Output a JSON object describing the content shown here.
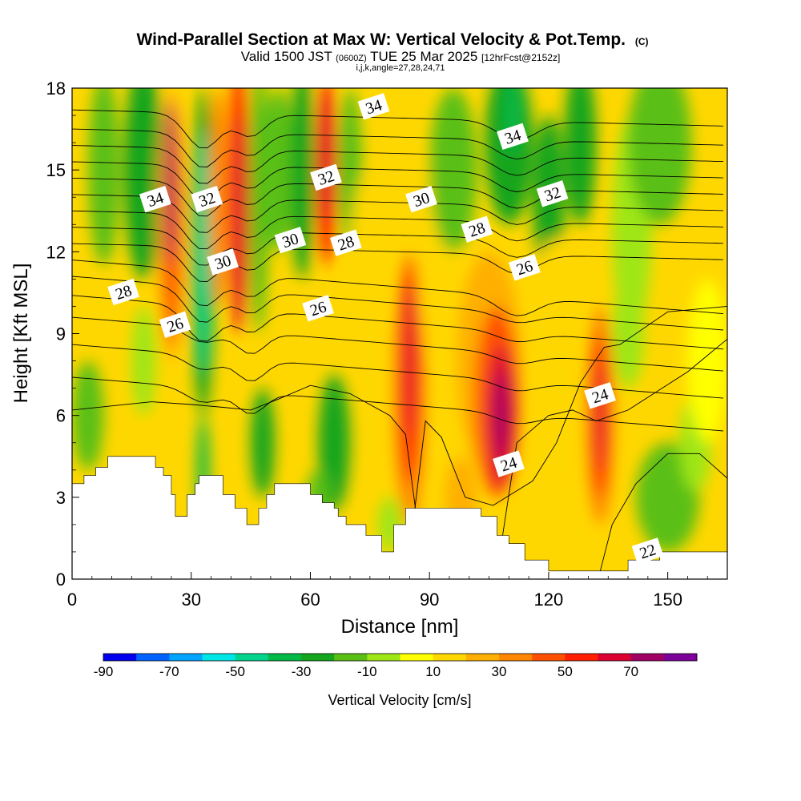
{
  "header": {
    "title_main": "Wind-Parallel Section at Max W: Vertical Velocity & Pot.Temp.",
    "title_copyright": "(C)",
    "valid_prefix": "Valid 1500 JST",
    "valid_utc": "(0600Z)",
    "valid_date": "TUE 25 Mar 2025",
    "valid_forecast": "[12hrFcst@2152z]",
    "indices": "i,j,k,angle=27,28,24,71"
  },
  "chart_data": {
    "type": "contour-section",
    "xlabel": "Distance [nm]",
    "ylabel": "Height [Kft MSL]",
    "xlim": [
      0,
      165
    ],
    "ylim": [
      0,
      18
    ],
    "x_ticks": [
      0,
      30,
      60,
      90,
      120,
      150
    ],
    "x_tick_labels": [
      "0",
      "30",
      "60",
      "90",
      "120",
      "150"
    ],
    "y_ticks": [
      0,
      3,
      6,
      9,
      12,
      15,
      18
    ],
    "y_tick_labels": [
      "0",
      "3",
      "6",
      "9",
      "12",
      "15",
      "18"
    ],
    "colorbar": {
      "label": "Vertical Velocity [cm/s]",
      "bounds": [
        -90,
        -80,
        -70,
        -60,
        -50,
        -40,
        -30,
        -20,
        -10,
        0,
        10,
        20,
        30,
        40,
        50,
        60,
        70,
        80
      ],
      "colors": [
        "#0000ee",
        "#0063ff",
        "#00a5ff",
        "#00e6e6",
        "#00d48c",
        "#00b946",
        "#15a51e",
        "#5abf14",
        "#9ee614",
        "#ffff00",
        "#ffd700",
        "#ffaf00",
        "#ff8700",
        "#ff5000",
        "#ff1e00",
        "#dc0032",
        "#a00064",
        "#7d009b"
      ],
      "tick_labels": [
        "-90",
        "-70",
        "-50",
        "-30",
        "-10",
        "10",
        "30",
        "50",
        "70"
      ]
    },
    "vertical_velocity_features": [
      {
        "sign": "up",
        "x": 25,
        "center_height": 14,
        "peak": 70
      },
      {
        "sign": "down",
        "x": 33,
        "center_height": 12,
        "peak": -50
      },
      {
        "sign": "up",
        "x": 42,
        "center_height": 14,
        "peak": 50
      },
      {
        "sign": "up",
        "x": 64,
        "center_height": 15,
        "peak": 50
      },
      {
        "sign": "up",
        "x": 85,
        "center_height": 8,
        "peak": 60
      },
      {
        "sign": "up",
        "x": 108,
        "center_height": 6,
        "peak": 70
      },
      {
        "sign": "up",
        "x": 133,
        "center_height": 6,
        "peak": 60
      },
      {
        "sign": "down",
        "x": 111,
        "center_height": 17,
        "peak": -40
      }
    ],
    "theta_contour_labels": [
      {
        "text": "34",
        "x": 76,
        "y": 17.3
      },
      {
        "text": "34",
        "x": 111,
        "y": 16.2
      },
      {
        "text": "34",
        "x": 21,
        "y": 13.9
      },
      {
        "text": "32",
        "x": 34,
        "y": 13.9
      },
      {
        "text": "32",
        "x": 64,
        "y": 14.7
      },
      {
        "text": "32",
        "x": 121,
        "y": 14.1
      },
      {
        "text": "30",
        "x": 88,
        "y": 13.9
      },
      {
        "text": "30",
        "x": 55,
        "y": 12.4
      },
      {
        "text": "30",
        "x": 38,
        "y": 11.6
      },
      {
        "text": "28",
        "x": 102,
        "y": 12.8
      },
      {
        "text": "28",
        "x": 69,
        "y": 12.3
      },
      {
        "text": "28",
        "x": 13,
        "y": 10.5
      },
      {
        "text": "26",
        "x": 114,
        "y": 11.4
      },
      {
        "text": "26",
        "x": 62,
        "y": 9.9
      },
      {
        "text": "26",
        "x": 26,
        "y": 9.3
      },
      {
        "text": "24",
        "x": 133,
        "y": 6.7
      },
      {
        "text": "24",
        "x": 110,
        "y": 4.2
      },
      {
        "text": "22",
        "x": 145,
        "y": 1.0
      }
    ]
  }
}
